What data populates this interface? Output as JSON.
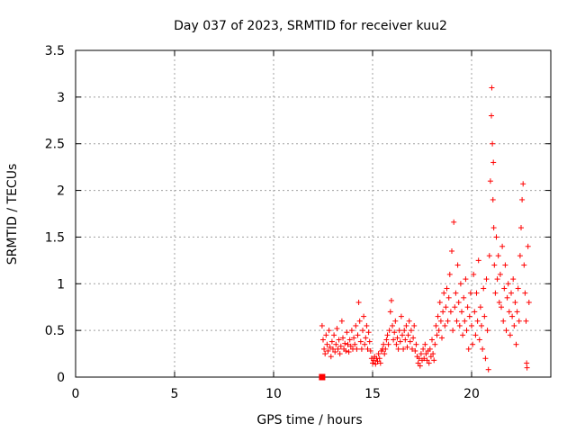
{
  "chart_data": {
    "type": "scatter",
    "title": "Day 037 of 2023, SRMTID for receiver kuu2",
    "xlabel": "GPS time / hours",
    "ylabel": "SRMTID / TECUs",
    "xlim": [
      0,
      24
    ],
    "ylim": [
      0,
      3.5
    ],
    "xticks": [
      0,
      5,
      10,
      15,
      20
    ],
    "xtick_labels": [
      "0",
      "5",
      "10",
      "15",
      "20"
    ],
    "yticks": [
      0,
      0.5,
      1,
      1.5,
      2,
      2.5,
      3,
      3.5
    ],
    "ytick_labels": [
      "0",
      "0.5",
      "1",
      "1.5",
      "2",
      "2.5",
      "3",
      "3.5"
    ],
    "grid": true,
    "marker": "plus",
    "color": "#ff0000",
    "series": [
      {
        "name": "SRMTID",
        "points": [
          [
            12.45,
            0.55
          ],
          [
            12.5,
            0.4
          ],
          [
            12.55,
            0.3
          ],
          [
            12.6,
            0.25
          ],
          [
            12.65,
            0.45
          ],
          [
            12.7,
            0.35
          ],
          [
            12.75,
            0.28
          ],
          [
            12.8,
            0.5
          ],
          [
            12.85,
            0.32
          ],
          [
            12.9,
            0.22
          ],
          [
            12.95,
            0.38
          ],
          [
            13.0,
            0.3
          ],
          [
            13.05,
            0.45
          ],
          [
            13.1,
            0.27
          ],
          [
            13.15,
            0.35
          ],
          [
            13.2,
            0.52
          ],
          [
            13.25,
            0.3
          ],
          [
            13.3,
            0.4
          ],
          [
            13.35,
            0.25
          ],
          [
            13.4,
            0.33
          ],
          [
            13.45,
            0.6
          ],
          [
            13.5,
            0.42
          ],
          [
            13.55,
            0.3
          ],
          [
            13.6,
            0.36
          ],
          [
            13.65,
            0.28
          ],
          [
            13.7,
            0.48
          ],
          [
            13.75,
            0.35
          ],
          [
            13.8,
            0.27
          ],
          [
            13.85,
            0.4
          ],
          [
            13.9,
            0.33
          ],
          [
            13.95,
            0.5
          ],
          [
            14.0,
            0.3
          ],
          [
            14.05,
            0.42
          ],
          [
            14.1,
            0.35
          ],
          [
            14.15,
            0.55
          ],
          [
            14.2,
            0.3
          ],
          [
            14.25,
            0.45
          ],
          [
            14.3,
            0.8
          ],
          [
            14.35,
            0.6
          ],
          [
            14.4,
            0.38
          ],
          [
            14.45,
            0.3
          ],
          [
            14.5,
            0.5
          ],
          [
            14.55,
            0.65
          ],
          [
            14.6,
            0.35
          ],
          [
            14.65,
            0.42
          ],
          [
            14.7,
            0.55
          ],
          [
            14.75,
            0.3
          ],
          [
            14.8,
            0.48
          ],
          [
            14.85,
            0.38
          ],
          [
            14.9,
            0.28
          ],
          [
            14.95,
            0.2
          ],
          [
            15.0,
            0.15
          ],
          [
            15.05,
            0.18
          ],
          [
            15.1,
            0.22
          ],
          [
            15.15,
            0.14
          ],
          [
            15.2,
            0.2
          ],
          [
            15.25,
            0.17
          ],
          [
            15.3,
            0.25
          ],
          [
            15.35,
            0.2
          ],
          [
            15.4,
            0.15
          ],
          [
            15.45,
            0.28
          ],
          [
            15.5,
            0.3
          ],
          [
            15.55,
            0.35
          ],
          [
            15.6,
            0.25
          ],
          [
            15.65,
            0.3
          ],
          [
            15.7,
            0.4
          ],
          [
            15.75,
            0.45
          ],
          [
            15.8,
            0.35
          ],
          [
            15.85,
            0.5
          ],
          [
            15.9,
            0.7
          ],
          [
            15.95,
            0.82
          ],
          [
            16.0,
            0.55
          ],
          [
            16.05,
            0.4
          ],
          [
            16.1,
            0.48
          ],
          [
            16.15,
            0.6
          ],
          [
            16.2,
            0.35
          ],
          [
            16.25,
            0.42
          ],
          [
            16.3,
            0.3
          ],
          [
            16.35,
            0.5
          ],
          [
            16.4,
            0.38
          ],
          [
            16.45,
            0.65
          ],
          [
            16.5,
            0.45
          ],
          [
            16.55,
            0.3
          ],
          [
            16.6,
            0.5
          ],
          [
            16.65,
            0.4
          ],
          [
            16.7,
            0.55
          ],
          [
            16.75,
            0.32
          ],
          [
            16.8,
            0.45
          ],
          [
            16.85,
            0.6
          ],
          [
            16.9,
            0.38
          ],
          [
            16.95,
            0.5
          ],
          [
            17.0,
            0.3
          ],
          [
            17.05,
            0.42
          ],
          [
            17.1,
            0.55
          ],
          [
            17.15,
            0.28
          ],
          [
            17.2,
            0.35
          ],
          [
            17.25,
            0.22
          ],
          [
            17.3,
            0.15
          ],
          [
            17.35,
            0.2
          ],
          [
            17.4,
            0.12
          ],
          [
            17.45,
            0.25
          ],
          [
            17.5,
            0.18
          ],
          [
            17.55,
            0.3
          ],
          [
            17.6,
            0.2
          ],
          [
            17.65,
            0.35
          ],
          [
            17.7,
            0.25
          ],
          [
            17.75,
            0.18
          ],
          [
            17.8,
            0.28
          ],
          [
            17.85,
            0.15
          ],
          [
            17.9,
            0.3
          ],
          [
            17.95,
            0.22
          ],
          [
            18.0,
            0.4
          ],
          [
            18.05,
            0.25
          ],
          [
            18.1,
            0.18
          ],
          [
            18.15,
            0.35
          ],
          [
            18.2,
            0.55
          ],
          [
            18.25,
            0.45
          ],
          [
            18.3,
            0.65
          ],
          [
            18.35,
            0.5
          ],
          [
            18.4,
            0.8
          ],
          [
            18.45,
            0.6
          ],
          [
            18.5,
            0.42
          ],
          [
            18.55,
            0.7
          ],
          [
            18.6,
            0.9
          ],
          [
            18.65,
            0.55
          ],
          [
            18.7,
            0.75
          ],
          [
            18.75,
            0.95
          ],
          [
            18.8,
            0.6
          ],
          [
            18.85,
            0.85
          ],
          [
            18.9,
            1.1
          ],
          [
            18.95,
            0.7
          ],
          [
            19.0,
            1.35
          ],
          [
            19.05,
            0.5
          ],
          [
            19.1,
            1.66
          ],
          [
            19.15,
            0.75
          ],
          [
            19.2,
            0.9
          ],
          [
            19.25,
            0.6
          ],
          [
            19.3,
            1.2
          ],
          [
            19.35,
            0.8
          ],
          [
            19.4,
            0.55
          ],
          [
            19.45,
            1.0
          ],
          [
            19.5,
            0.7
          ],
          [
            19.55,
            0.45
          ],
          [
            19.6,
            0.85
          ],
          [
            19.65,
            0.6
          ],
          [
            19.7,
            1.05
          ],
          [
            19.75,
            0.5
          ],
          [
            19.8,
            0.75
          ],
          [
            19.85,
            0.3
          ],
          [
            19.9,
            0.65
          ],
          [
            19.95,
            0.9
          ],
          [
            20.0,
            0.55
          ],
          [
            20.05,
            0.35
          ],
          [
            20.1,
            1.1
          ],
          [
            20.15,
            0.7
          ],
          [
            20.2,
            0.45
          ],
          [
            20.25,
            0.9
          ],
          [
            20.3,
            0.6
          ],
          [
            20.35,
            1.25
          ],
          [
            20.4,
            0.4
          ],
          [
            20.45,
            0.75
          ],
          [
            20.5,
            0.55
          ],
          [
            20.55,
            0.3
          ],
          [
            20.6,
            0.95
          ],
          [
            20.65,
            0.65
          ],
          [
            20.7,
            0.2
          ],
          [
            20.75,
            1.05
          ],
          [
            20.8,
            0.5
          ],
          [
            20.85,
            0.08
          ],
          [
            20.9,
            1.3
          ],
          [
            20.95,
            2.1
          ],
          [
            21.0,
            2.8
          ],
          [
            21.02,
            3.1
          ],
          [
            21.05,
            2.5
          ],
          [
            21.08,
            1.9
          ],
          [
            21.1,
            2.3
          ],
          [
            21.12,
            1.6
          ],
          [
            21.15,
            1.2
          ],
          [
            21.2,
            0.9
          ],
          [
            21.25,
            1.5
          ],
          [
            21.3,
            1.05
          ],
          [
            21.35,
            1.3
          ],
          [
            21.4,
            0.8
          ],
          [
            21.45,
            1.1
          ],
          [
            21.5,
            0.75
          ],
          [
            21.55,
            1.4
          ],
          [
            21.6,
            0.6
          ],
          [
            21.65,
            0.95
          ],
          [
            21.7,
            1.2
          ],
          [
            21.75,
            0.5
          ],
          [
            21.8,
            0.85
          ],
          [
            21.85,
            1.0
          ],
          [
            21.9,
            0.7
          ],
          [
            21.95,
            0.45
          ],
          [
            22.0,
            0.9
          ],
          [
            22.05,
            0.65
          ],
          [
            22.1,
            1.05
          ],
          [
            22.15,
            0.55
          ],
          [
            22.2,
            0.8
          ],
          [
            22.25,
            0.35
          ],
          [
            22.3,
            0.7
          ],
          [
            22.35,
            0.95
          ],
          [
            22.4,
            0.6
          ],
          [
            22.45,
            1.3
          ],
          [
            22.5,
            1.6
          ],
          [
            22.55,
            1.9
          ],
          [
            22.6,
            2.07
          ],
          [
            22.65,
            1.2
          ],
          [
            22.7,
            0.9
          ],
          [
            22.75,
            0.6
          ],
          [
            22.78,
            0.15
          ],
          [
            22.8,
            0.1
          ],
          [
            22.85,
            1.4
          ],
          [
            22.9,
            0.8
          ]
        ]
      }
    ],
    "highlight": {
      "x": 12.45,
      "y": 0.0,
      "marker": "square"
    }
  }
}
